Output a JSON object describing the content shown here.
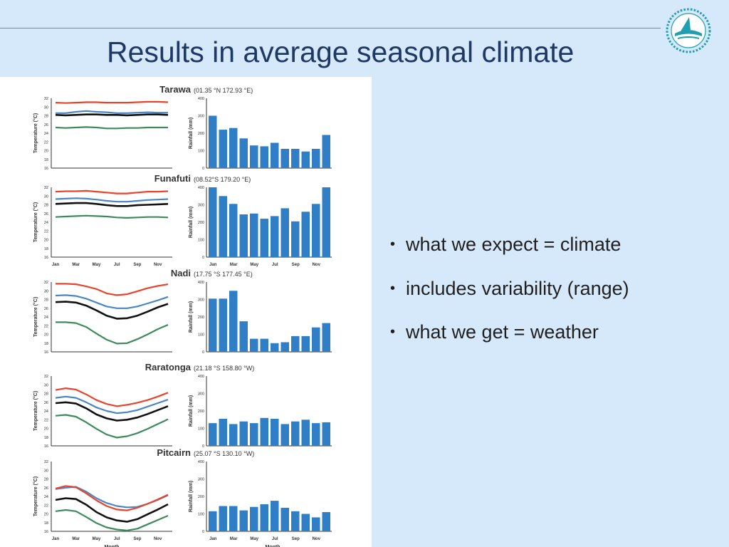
{
  "slide": {
    "title": "Results in average seasonal climate",
    "bullets": [
      "what we expect = climate",
      "includes variability (range)",
      "what we get = weather"
    ],
    "accent_color": "#2fa7b3",
    "title_color": "#1f3864",
    "logo_icon": "pacific-community-logo-icon"
  },
  "chart_data": {
    "type": "line+bar",
    "month_ticks": [
      "Jan",
      "Mar",
      "May",
      "Jul",
      "Sep",
      "Nov"
    ],
    "temp_axis_label": "Temperature (°C)",
    "rain_axis_label": "Rainfall (mm)",
    "month_label": "Month",
    "temp_ylim": [
      16,
      32
    ],
    "temp_ticks": [
      16,
      18,
      20,
      22,
      24,
      26,
      28,
      30,
      32
    ],
    "rain_ylim": [
      0,
      400
    ],
    "rain_ticks": [
      0,
      100,
      200,
      300,
      400
    ],
    "series_colors": {
      "max": "#e8442b",
      "mean": "#111111",
      "humid": "#4a86c5",
      "min": "#3d8a5a",
      "bar": "#2f7ec6"
    },
    "stations": [
      {
        "name": "Tarawa",
        "coords": "(01.35 °N  172.93 °E)",
        "temp": {
          "max": [
            31.0,
            30.9,
            31.0,
            31.1,
            31.1,
            31.0,
            31.0,
            31.0,
            31.1,
            31.2,
            31.2,
            31.1
          ],
          "humid": [
            28.6,
            28.6,
            28.9,
            29.1,
            28.9,
            28.8,
            28.6,
            28.6,
            28.7,
            28.8,
            28.7,
            28.7
          ],
          "mean": [
            28.2,
            28.1,
            28.2,
            28.3,
            28.3,
            28.2,
            28.2,
            28.1,
            28.2,
            28.3,
            28.3,
            28.2
          ],
          "min": [
            25.3,
            25.2,
            25.3,
            25.4,
            25.3,
            25.1,
            25.1,
            25.2,
            25.2,
            25.3,
            25.3,
            25.3
          ]
        },
        "rain": [
          300,
          220,
          230,
          170,
          130,
          125,
          145,
          110,
          110,
          95,
          110,
          190
        ]
      },
      {
        "name": "Funafuti",
        "coords": "(08.52°S  179.20 °E)",
        "temp": {
          "max": [
            31.0,
            31.1,
            31.1,
            31.2,
            31.0,
            30.8,
            30.6,
            30.6,
            30.8,
            31.0,
            31.0,
            31.1
          ],
          "humid": [
            29.3,
            29.4,
            29.5,
            29.4,
            29.2,
            28.9,
            28.7,
            28.7,
            28.9,
            29.1,
            29.2,
            29.3
          ],
          "mean": [
            28.2,
            28.3,
            28.4,
            28.4,
            28.2,
            27.9,
            27.7,
            27.7,
            27.9,
            28.0,
            28.1,
            28.2
          ],
          "min": [
            25.2,
            25.3,
            25.4,
            25.5,
            25.4,
            25.3,
            25.1,
            25.0,
            25.1,
            25.2,
            25.2,
            25.1
          ]
        },
        "rain": [
          400,
          350,
          305,
          245,
          250,
          220,
          235,
          280,
          205,
          260,
          305,
          400
        ]
      },
      {
        "name": "Nadi",
        "coords": "(17.75 °S  177.45 °E)",
        "temp": {
          "max": [
            31.6,
            31.6,
            31.5,
            31.0,
            30.4,
            29.4,
            29.0,
            29.2,
            29.9,
            30.6,
            31.1,
            31.5
          ],
          "humid": [
            28.9,
            29.0,
            28.8,
            28.2,
            27.3,
            26.4,
            26.0,
            26.0,
            26.4,
            27.1,
            27.8,
            28.6
          ],
          "mean": [
            27.4,
            27.5,
            27.3,
            26.6,
            25.5,
            24.3,
            23.6,
            23.7,
            24.3,
            25.2,
            26.2,
            27.0
          ],
          "min": [
            22.8,
            22.8,
            22.6,
            21.7,
            20.2,
            18.8,
            17.9,
            18.0,
            18.9,
            20.0,
            21.2,
            22.2
          ]
        },
        "rain": [
          305,
          305,
          350,
          175,
          75,
          75,
          50,
          55,
          90,
          90,
          140,
          165
        ]
      },
      {
        "name": "Raratonga",
        "coords": "(21.18 °S  158.80 °W)",
        "temp": {
          "max": [
            28.8,
            29.2,
            28.9,
            27.8,
            26.5,
            25.6,
            25.1,
            25.4,
            25.9,
            26.5,
            27.3,
            28.2
          ],
          "humid": [
            27.0,
            27.3,
            27.0,
            26.0,
            24.8,
            24.0,
            23.5,
            23.7,
            24.2,
            25.0,
            25.8,
            26.6
          ],
          "mean": [
            25.8,
            26.0,
            25.7,
            24.6,
            23.2,
            22.3,
            21.8,
            22.0,
            22.5,
            23.3,
            24.2,
            25.1
          ],
          "min": [
            22.9,
            23.1,
            22.7,
            21.4,
            19.9,
            18.6,
            17.9,
            18.2,
            18.9,
            19.9,
            21.0,
            22.1
          ]
        },
        "rain": [
          130,
          155,
          125,
          140,
          130,
          160,
          155,
          125,
          140,
          150,
          130,
          135
        ]
      },
      {
        "name": "Pitcairn",
        "coords": "(25.07 °S  130.10 °W)",
        "temp": {
          "max": [
            25.8,
            26.4,
            26.1,
            24.7,
            23.1,
            21.8,
            21.0,
            20.8,
            21.4,
            22.3,
            23.3,
            24.4
          ],
          "humid": [
            25.7,
            26.0,
            26.2,
            25.1,
            23.6,
            22.5,
            21.8,
            21.5,
            21.6,
            22.3,
            23.2,
            24.3
          ],
          "mean": [
            23.2,
            23.6,
            23.4,
            22.1,
            20.4,
            19.2,
            18.5,
            18.2,
            18.8,
            19.9,
            21.0,
            22.2
          ],
          "min": [
            20.6,
            20.9,
            20.6,
            19.3,
            17.9,
            16.9,
            16.4,
            16.2,
            16.6,
            17.6,
            18.6,
            19.6
          ]
        },
        "rain": [
          115,
          145,
          145,
          120,
          140,
          155,
          175,
          135,
          115,
          100,
          80,
          110
        ]
      }
    ]
  }
}
